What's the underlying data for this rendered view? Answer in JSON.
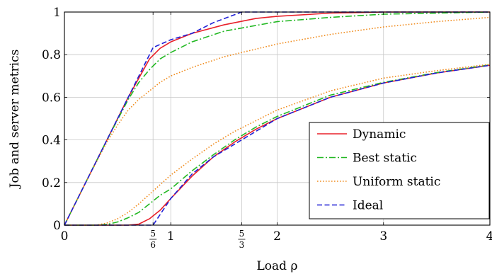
{
  "chart_data": {
    "type": "line",
    "xlabel": "Load ρ",
    "ylabel": "Job and server metrics",
    "xlim": [
      0,
      4
    ],
    "ylim": [
      0,
      1
    ],
    "grid": true,
    "legend_position": "bottom-right",
    "x_ticks": [
      {
        "value": 0,
        "label": "0"
      },
      {
        "value": 0.8333,
        "num": "5",
        "den": "6"
      },
      {
        "value": 1,
        "label": "1"
      },
      {
        "value": 1.6667,
        "num": "5",
        "den": "3"
      },
      {
        "value": 2,
        "label": "2"
      },
      {
        "value": 3,
        "label": "3"
      },
      {
        "value": 4,
        "label": "4"
      }
    ],
    "y_ticks": [
      {
        "value": 0,
        "label": "0"
      },
      {
        "value": 0.2,
        "label": "0.2"
      },
      {
        "value": 0.4,
        "label": "0.4"
      },
      {
        "value": 0.6,
        "label": "0.6"
      },
      {
        "value": 0.8,
        "label": "0.8"
      },
      {
        "value": 1,
        "label": "1"
      }
    ],
    "series": [
      {
        "name": "Dynamic",
        "color": "#e8202a",
        "dash": "solid",
        "curves": [
          [
            [
              0,
              0
            ],
            [
              0.2,
              0.2
            ],
            [
              0.4,
              0.4
            ],
            [
              0.6,
              0.6
            ],
            [
              0.7,
              0.69
            ],
            [
              0.8,
              0.78
            ],
            [
              0.9,
              0.83
            ],
            [
              1.0,
              0.86
            ],
            [
              1.2,
              0.9
            ],
            [
              1.5,
              0.94
            ],
            [
              1.8,
              0.97
            ],
            [
              2.0,
              0.98
            ],
            [
              2.5,
              0.995
            ],
            [
              3.0,
              1.0
            ],
            [
              4.0,
              1.0
            ]
          ],
          [
            [
              0,
              0
            ],
            [
              0.5,
              0.0
            ],
            [
              0.6,
              0.0
            ],
            [
              0.7,
              0.005
            ],
            [
              0.8,
              0.03
            ],
            [
              0.9,
              0.07
            ],
            [
              1.0,
              0.125
            ],
            [
              1.2,
              0.23
            ],
            [
              1.4,
              0.32
            ],
            [
              1.6,
              0.39
            ],
            [
              1.8,
              0.45
            ],
            [
              2.0,
              0.5
            ],
            [
              2.5,
              0.6
            ],
            [
              3.0,
              0.667
            ],
            [
              3.5,
              0.714
            ],
            [
              4.0,
              0.75
            ]
          ]
        ]
      },
      {
        "name": "Best static",
        "color": "#22b822",
        "dash": "dashdot",
        "curves": [
          [
            [
              0,
              0
            ],
            [
              0.2,
              0.2
            ],
            [
              0.4,
              0.4
            ],
            [
              0.6,
              0.59
            ],
            [
              0.7,
              0.67
            ],
            [
              0.8,
              0.73
            ],
            [
              0.9,
              0.78
            ],
            [
              1.0,
              0.81
            ],
            [
              1.2,
              0.86
            ],
            [
              1.5,
              0.91
            ],
            [
              2.0,
              0.955
            ],
            [
              2.5,
              0.975
            ],
            [
              3.0,
              0.99
            ],
            [
              4.0,
              1.0
            ]
          ],
          [
            [
              0,
              0
            ],
            [
              0.3,
              0.0
            ],
            [
              0.4,
              0.003
            ],
            [
              0.5,
              0.015
            ],
            [
              0.6,
              0.035
            ],
            [
              0.7,
              0.06
            ],
            [
              0.8,
              0.1
            ],
            [
              0.9,
              0.14
            ],
            [
              1.0,
              0.17
            ],
            [
              1.2,
              0.255
            ],
            [
              1.4,
              0.33
            ],
            [
              1.6,
              0.4
            ],
            [
              1.8,
              0.46
            ],
            [
              2.0,
              0.51
            ],
            [
              2.5,
              0.61
            ],
            [
              3.0,
              0.67
            ],
            [
              3.5,
              0.716
            ],
            [
              4.0,
              0.752
            ]
          ]
        ]
      },
      {
        "name": "Uniform static",
        "color": "#f08c1e",
        "dash": "dotted",
        "curves": [
          [
            [
              0,
              0
            ],
            [
              0.2,
              0.2
            ],
            [
              0.4,
              0.39
            ],
            [
              0.5,
              0.47
            ],
            [
              0.6,
              0.54
            ],
            [
              0.7,
              0.59
            ],
            [
              0.8,
              0.63
            ],
            [
              0.9,
              0.67
            ],
            [
              1.0,
              0.7
            ],
            [
              1.2,
              0.74
            ],
            [
              1.5,
              0.79
            ],
            [
              2.0,
              0.85
            ],
            [
              2.5,
              0.895
            ],
            [
              3.0,
              0.93
            ],
            [
              3.5,
              0.955
            ],
            [
              4.0,
              0.975
            ]
          ],
          [
            [
              0,
              0
            ],
            [
              0.3,
              0.0
            ],
            [
              0.4,
              0.01
            ],
            [
              0.5,
              0.03
            ],
            [
              0.6,
              0.06
            ],
            [
              0.7,
              0.1
            ],
            [
              0.8,
              0.145
            ],
            [
              0.9,
              0.19
            ],
            [
              1.0,
              0.235
            ],
            [
              1.2,
              0.31
            ],
            [
              1.4,
              0.38
            ],
            [
              1.6,
              0.44
            ],
            [
              1.8,
              0.49
            ],
            [
              2.0,
              0.54
            ],
            [
              2.5,
              0.63
            ],
            [
              3.0,
              0.69
            ],
            [
              3.5,
              0.725
            ],
            [
              4.0,
              0.755
            ]
          ]
        ]
      },
      {
        "name": "Ideal",
        "color": "#1f1fd6",
        "dash": "dashed",
        "curves": [
          [
            [
              0,
              0
            ],
            [
              0.8333,
              0.8333
            ],
            [
              1.0,
              0.87
            ],
            [
              1.2,
              0.9
            ],
            [
              1.4,
              0.95
            ],
            [
              1.6667,
              1.0
            ],
            [
              4.0,
              1.0
            ]
          ],
          [
            [
              0,
              0
            ],
            [
              0.8333,
              0.0
            ],
            [
              1.0,
              0.125
            ],
            [
              1.2,
              0.24
            ],
            [
              1.4,
              0.32
            ],
            [
              1.6667,
              0.4
            ],
            [
              2.0,
              0.5
            ],
            [
              2.5,
              0.6
            ],
            [
              3.0,
              0.667
            ],
            [
              3.5,
              0.714
            ],
            [
              4.0,
              0.75
            ]
          ]
        ]
      }
    ]
  }
}
